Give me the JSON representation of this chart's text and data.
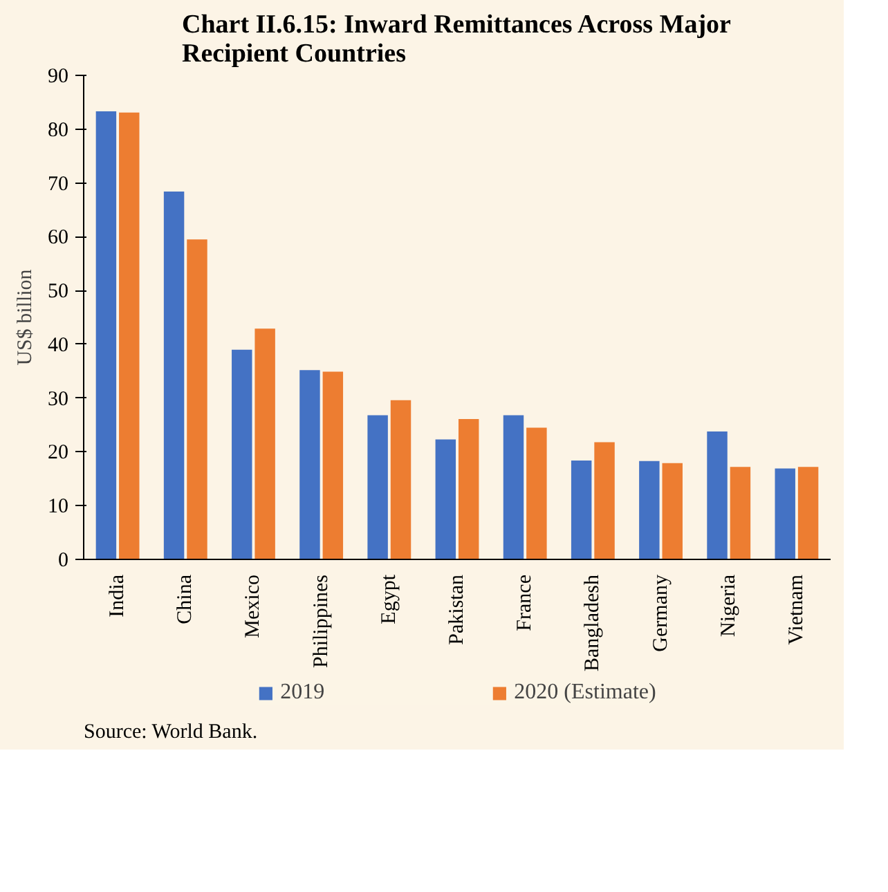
{
  "chart_data": {
    "type": "bar",
    "title": "Chart II.6.15: Inward Remittances Across Major Recipient Countries",
    "ylabel": "US$ billion",
    "categories": [
      "India",
      "China",
      "Mexico",
      "Philippines",
      "Egypt",
      "Pakistan",
      "France",
      "Bangladesh",
      "Germany",
      "Nigeria",
      "Vietnam"
    ],
    "series": [
      {
        "name": "2019",
        "color": "#4472c4",
        "values": [
          83.3,
          68.4,
          39.0,
          35.2,
          26.8,
          22.3,
          26.8,
          18.4,
          18.3,
          23.8,
          16.9
        ]
      },
      {
        "name": "2020 (Estimate)",
        "color": "#ed7d31",
        "values": [
          83.1,
          59.5,
          42.9,
          34.9,
          29.6,
          26.1,
          24.5,
          21.8,
          17.9,
          17.2,
          17.2
        ]
      }
    ],
    "ylim": [
      0,
      90
    ],
    "yticks": [
      0,
      10,
      20,
      30,
      40,
      50,
      60,
      70,
      80,
      90
    ],
    "grid": false,
    "legend": "bottom",
    "annotations": [
      "Source: World Bank."
    ]
  }
}
